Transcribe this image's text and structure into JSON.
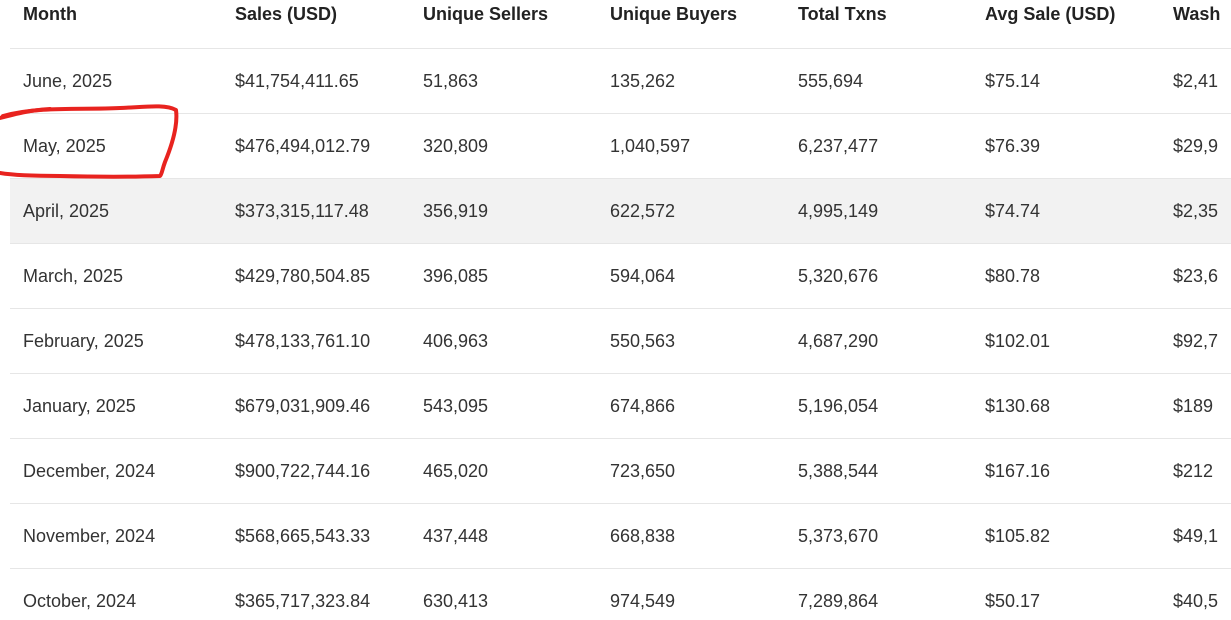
{
  "table": {
    "columns": [
      "Month",
      "Sales (USD)",
      "Unique Sellers",
      "Unique Buyers",
      "Total Txns",
      "Avg Sale (USD)",
      "Wash"
    ],
    "rows": [
      [
        "June, 2025",
        "$41,754,411.65",
        "51,863",
        "135,262",
        "555,694",
        "$75.14",
        "$2,41"
      ],
      [
        "May, 2025",
        "$476,494,012.79",
        "320,809",
        "1,040,597",
        "6,237,477",
        "$76.39",
        "$29,9"
      ],
      [
        "April, 2025",
        "$373,315,117.48",
        "356,919",
        "622,572",
        "4,995,149",
        "$74.74",
        "$2,35"
      ],
      [
        "March, 2025",
        "$429,780,504.85",
        "396,085",
        "594,064",
        "5,320,676",
        "$80.78",
        "$23,6"
      ],
      [
        "February, 2025",
        "$478,133,761.10",
        "406,963",
        "550,563",
        "4,687,290",
        "$102.01",
        "$92,7"
      ],
      [
        "January, 2025",
        "$679,031,909.46",
        "543,095",
        "674,866",
        "5,196,054",
        "$130.68",
        "$189"
      ],
      [
        "December, 2024",
        "$900,722,744.16",
        "465,020",
        "723,650",
        "5,388,544",
        "$167.16",
        "$212"
      ],
      [
        "November, 2024",
        "$568,665,543.33",
        "437,448",
        "668,838",
        "5,373,670",
        "$105.82",
        "$49,1"
      ],
      [
        "October, 2024",
        "$365,717,323.84",
        "630,413",
        "974,549",
        "7,289,864",
        "$50.17",
        "$40,5"
      ]
    ]
  },
  "highlighted_row_index": 2,
  "annotation": {
    "shape": "hand-drawn-red-outline",
    "target": "May, 2025",
    "color": "#e8231f"
  }
}
